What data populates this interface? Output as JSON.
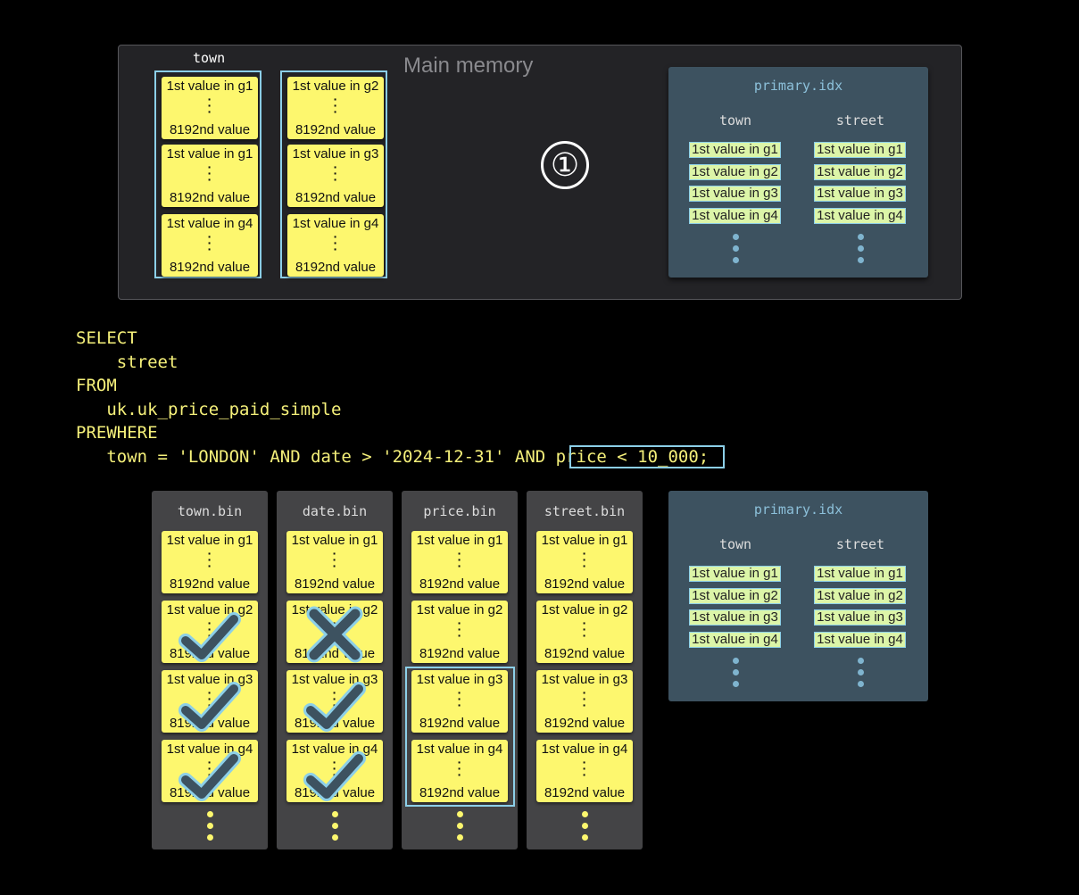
{
  "main_memory": {
    "label": "Main memory",
    "column_label": "town",
    "columns": [
      {
        "cards": [
          {
            "first": "1st value in g1",
            "last": "8192nd value"
          },
          {
            "first": "1st value in g1",
            "last": "8192nd value"
          },
          {
            "first": "1st value in g4",
            "last": "8192nd value"
          }
        ]
      },
      {
        "cards": [
          {
            "first": "1st value in g2",
            "last": "8192nd value"
          },
          {
            "first": "1st value in g3",
            "last": "8192nd value"
          },
          {
            "first": "1st value in g4",
            "last": "8192nd value"
          }
        ]
      }
    ],
    "step_marker": "①"
  },
  "primary_index": {
    "title": "primary.idx",
    "columns": [
      {
        "header": "town",
        "entries": [
          "1st value in g1",
          "1st value in g2",
          "1st value in g3",
          "1st value in g4"
        ]
      },
      {
        "header": "street",
        "entries": [
          "1st value in g1",
          "1st value in g2",
          "1st value in g3",
          "1st value in g4"
        ]
      }
    ]
  },
  "query": {
    "lines": [
      "SELECT",
      "    street",
      "FROM",
      "   uk.uk_price_paid_simple",
      "PREWHERE",
      "   town = 'LONDON' AND date > '2024-12-31' AND price < 10_000;"
    ],
    "highlighted": "price < 10_000"
  },
  "bins": [
    {
      "title": "town.bin",
      "marks": [
        "",
        "check",
        "check",
        "check"
      ],
      "cards": [
        "1st value in g1",
        "1st value in g2",
        "1st value in g3",
        "1st value in g4"
      ],
      "last": "8192nd value"
    },
    {
      "title": "date.bin",
      "marks": [
        "",
        "cross",
        "check",
        "check"
      ],
      "cards": [
        "1st value in g1",
        "1st value in g2",
        "1st value in g3",
        "1st value in g4"
      ],
      "last": "8192nd value"
    },
    {
      "title": "price.bin",
      "marks": [
        "",
        "",
        "",
        ""
      ],
      "selected": [
        2,
        3
      ],
      "cards": [
        "1st value in g1",
        "1st value in g2",
        "1st value in g3",
        "1st value in g4"
      ],
      "last": "8192nd value"
    },
    {
      "title": "street.bin",
      "marks": [
        "",
        "",
        "",
        ""
      ],
      "cards": [
        "1st value in g1",
        "1st value in g2",
        "1st value in g3",
        "1st value in g4"
      ],
      "last": "8192nd value"
    }
  ],
  "colors": {
    "card": "#fdf76e",
    "highlight": "#8ccfe8",
    "index_bg": "#3d5260",
    "sql": "#f5f07a",
    "mark": "#3d5260"
  }
}
